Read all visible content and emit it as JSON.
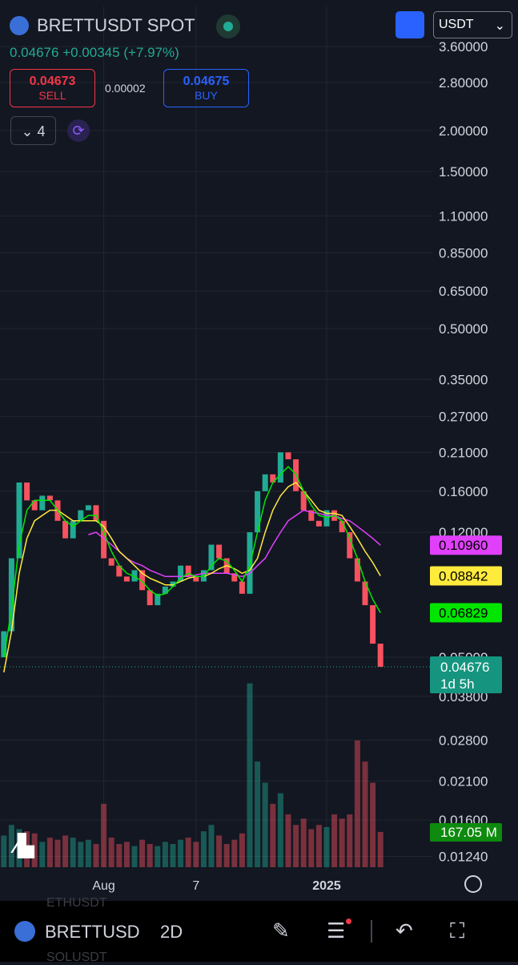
{
  "header": {
    "symbol": "BRETTUSDT SPOT",
    "price": "0.04676",
    "change": "+0.00345",
    "change_pct": "(+7.97%)",
    "sell_price": "0.04673",
    "sell_label": "SELL",
    "spread": "0.00002",
    "buy_price": "0.04675",
    "buy_label": "BUY",
    "indicator_count": "4",
    "currency": "USDT"
  },
  "chart_data": {
    "type": "candlestick",
    "log_scale": true,
    "grid": true,
    "categories": [
      null,
      null,
      null,
      null,
      null,
      null,
      null,
      null,
      null,
      null,
      null,
      null,
      null,
      "Aug",
      null,
      null,
      null,
      null,
      null,
      null,
      null,
      null,
      null,
      null,
      null,
      "7",
      null,
      null,
      null,
      null,
      null,
      null,
      null,
      null,
      null,
      null,
      null,
      null,
      null,
      null,
      null,
      null,
      "2025",
      null,
      null,
      null,
      null,
      null,
      null,
      null
    ],
    "open": [
      0.05,
      0.06,
      0.1,
      0.17,
      0.15,
      0.14,
      0.155,
      0.15,
      0.13,
      0.115,
      0.13,
      0.14,
      0.145,
      0.13,
      0.1,
      0.095,
      0.088,
      0.085,
      0.092,
      0.08,
      0.072,
      0.078,
      0.082,
      0.085,
      0.095,
      0.088,
      0.085,
      0.092,
      0.11,
      0.1,
      0.09,
      0.085,
      0.078,
      0.12,
      0.16,
      0.18,
      0.17,
      0.21,
      0.2,
      0.16,
      0.14,
      0.13,
      0.125,
      0.14,
      0.13,
      0.12,
      0.1,
      0.085,
      0.072,
      0.055
    ],
    "close": [
      0.06,
      0.1,
      0.17,
      0.15,
      0.14,
      0.155,
      0.15,
      0.13,
      0.115,
      0.13,
      0.14,
      0.145,
      0.13,
      0.1,
      0.095,
      0.088,
      0.085,
      0.092,
      0.08,
      0.072,
      0.078,
      0.082,
      0.085,
      0.095,
      0.088,
      0.085,
      0.092,
      0.11,
      0.1,
      0.09,
      0.085,
      0.078,
      0.12,
      0.16,
      0.18,
      0.17,
      0.21,
      0.2,
      0.16,
      0.14,
      0.13,
      0.125,
      0.14,
      0.13,
      0.12,
      0.1,
      0.085,
      0.072,
      0.055,
      0.04676
    ],
    "up_color": "#22ab94",
    "down_color": "#f7525f",
    "ma": [
      {
        "color": "#e040fb",
        "price_label": "0.10960",
        "values": [
          null,
          null,
          null,
          null,
          null,
          null,
          null,
          null,
          null,
          null,
          null,
          0.118,
          0.12,
          0.115,
          0.11,
          0.105,
          0.1,
          0.097,
          0.095,
          0.092,
          0.09,
          0.088,
          0.088,
          0.088,
          0.088,
          0.089,
          0.09,
          0.09,
          0.09,
          0.09,
          0.089,
          0.088,
          0.09,
          0.095,
          0.1,
          0.11,
          0.12,
          0.13,
          0.135,
          0.14,
          0.138,
          0.137,
          0.135,
          0.135,
          0.132,
          0.13,
          0.125,
          0.12,
          0.115,
          0.1096
        ]
      },
      {
        "color": "#ffeb3b",
        "price_label": "0.08842",
        "values": [
          0.045,
          0.06,
          0.09,
          0.115,
          0.13,
          0.135,
          0.14,
          0.14,
          0.135,
          0.13,
          0.13,
          0.13,
          0.13,
          0.125,
          0.115,
          0.105,
          0.1,
          0.095,
          0.09,
          0.087,
          0.085,
          0.083,
          0.083,
          0.085,
          0.087,
          0.088,
          0.088,
          0.09,
          0.093,
          0.095,
          0.093,
          0.09,
          0.092,
          0.1,
          0.12,
          0.14,
          0.155,
          0.165,
          0.17,
          0.16,
          0.15,
          0.14,
          0.137,
          0.137,
          0.135,
          0.125,
          0.115,
          0.105,
          0.097,
          0.08842
        ]
      },
      {
        "color": "#00e600",
        "price_label": "0.06829",
        "values": [
          0.05,
          0.07,
          0.11,
          0.14,
          0.15,
          0.15,
          0.15,
          0.14,
          0.13,
          0.125,
          0.13,
          0.135,
          0.135,
          0.12,
          0.105,
          0.095,
          0.09,
          0.088,
          0.085,
          0.08,
          0.077,
          0.078,
          0.082,
          0.087,
          0.09,
          0.088,
          0.088,
          0.095,
          0.1,
          0.098,
          0.092,
          0.085,
          0.095,
          0.12,
          0.15,
          0.17,
          0.18,
          0.19,
          0.18,
          0.16,
          0.145,
          0.135,
          0.133,
          0.135,
          0.13,
          0.115,
          0.1,
          0.085,
          0.075,
          0.06829
        ]
      }
    ],
    "current_price": 0.04676,
    "countdown": "1d 5h",
    "ylim": [
      0.0113,
      4.77
    ],
    "yticks": [
      {
        "value": 3.6,
        "label": "3.60000"
      },
      {
        "value": 2.8,
        "label": "2.80000"
      },
      {
        "value": 2.0,
        "label": "2.00000"
      },
      {
        "value": 1.5,
        "label": "1.50000"
      },
      {
        "value": 1.1,
        "label": "1.10000"
      },
      {
        "value": 0.85,
        "label": "0.85000"
      },
      {
        "value": 0.65,
        "label": "0.65000"
      },
      {
        "value": 0.5,
        "label": "0.50000"
      },
      {
        "value": 0.35,
        "label": "0.35000"
      },
      {
        "value": 0.27,
        "label": "0.27000"
      },
      {
        "value": 0.21,
        "label": "0.21000"
      },
      {
        "value": 0.16,
        "label": "0.16000"
      },
      {
        "value": 0.12,
        "label": "0.12000"
      },
      {
        "value": 0.05,
        "label": "0.05000"
      },
      {
        "value": 0.038,
        "label": "0.03800"
      },
      {
        "value": 0.028,
        "label": "0.02800"
      },
      {
        "value": 0.021,
        "label": "0.02100"
      },
      {
        "value": 0.016,
        "label": "0.01600"
      },
      {
        "value": 0.0124,
        "label": "0.01240"
      }
    ],
    "volume": {
      "ylim": [
        0,
        880
      ],
      "value_label": "167.05 M",
      "values": [
        150,
        200,
        180,
        170,
        160,
        120,
        140,
        130,
        150,
        140,
        120,
        130,
        110,
        300,
        140,
        110,
        120,
        100,
        130,
        110,
        100,
        120,
        110,
        130,
        140,
        120,
        170,
        200,
        150,
        110,
        130,
        160,
        870,
        500,
        400,
        300,
        350,
        250,
        200,
        230,
        180,
        200,
        190,
        250,
        230,
        250,
        600,
        500,
        400,
        167.05
      ]
    }
  },
  "toolbar": {
    "symbol": "BRETTUSD",
    "interval": "2D",
    "list_item_1": "ETHUSDT",
    "list_item_2": "SOLUSDT"
  }
}
